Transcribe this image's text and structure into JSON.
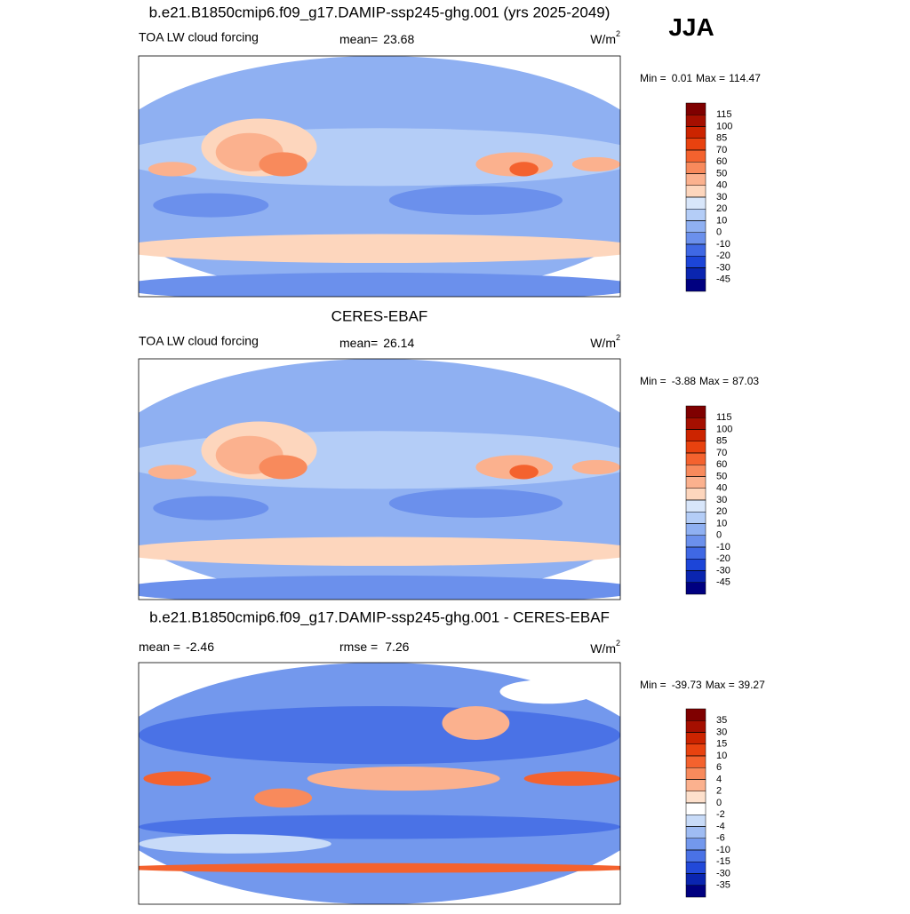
{
  "season": "JJA",
  "panels": [
    {
      "title": "b.e21.B1850cmip6.f09_g17.DAMIP-ssp245-ghg.001 (yrs 2025-2049)",
      "left_label": "TOA LW cloud forcing",
      "stat_label": "mean=",
      "stat_value": 23.68,
      "units": "W/m",
      "units_sup": "2",
      "min_label": "Min =",
      "min": 0.01,
      "max_label": "Max =",
      "max": 114.47,
      "levels": [
        115,
        100,
        85,
        70,
        60,
        50,
        40,
        30,
        20,
        10,
        0,
        -10,
        -20,
        -30,
        -45
      ],
      "colors": [
        "#7f0000",
        "#a50f00",
        "#cc2400",
        "#e8420f",
        "#f4622e",
        "#f88a5c",
        "#fbb18e",
        "#fdd6bd",
        "#d8e6fa",
        "#b4cdf7",
        "#8fb0f2",
        "#6b90ec",
        "#3f68e4",
        "#1c45d8",
        "#0a25b0",
        "#000080"
      ]
    },
    {
      "title": "CERES-EBAF",
      "left_label": "TOA LW cloud forcing",
      "stat_label": "mean=",
      "stat_value": 26.14,
      "units": "W/m",
      "units_sup": "2",
      "min_label": "Min =",
      "min": -3.88,
      "max_label": "Max =",
      "max": 87.03,
      "levels": [
        115,
        100,
        85,
        70,
        60,
        50,
        40,
        30,
        20,
        10,
        0,
        -10,
        -20,
        -30,
        -45
      ],
      "colors": [
        "#7f0000",
        "#a50f00",
        "#cc2400",
        "#e8420f",
        "#f4622e",
        "#f88a5c",
        "#fbb18e",
        "#fdd6bd",
        "#d8e6fa",
        "#b4cdf7",
        "#8fb0f2",
        "#6b90ec",
        "#3f68e4",
        "#1c45d8",
        "#0a25b0",
        "#000080"
      ]
    },
    {
      "title": "b.e21.B1850cmip6.f09_g17.DAMIP-ssp245-ghg.001 - CERES-EBAF",
      "stat_label": "mean =",
      "stat_value": -2.46,
      "stat2_label": "rmse =",
      "stat2_value": 7.26,
      "units": "W/m",
      "units_sup": "2",
      "min_label": "Min =",
      "min": -39.73,
      "max_label": "Max =",
      "max": 39.27,
      "levels": [
        35,
        30,
        15,
        10,
        6,
        4,
        2,
        0,
        -2,
        -4,
        -6,
        -10,
        -15,
        -30,
        -35
      ],
      "colors": [
        "#7f0000",
        "#a50f00",
        "#cc2400",
        "#e8420f",
        "#f4622e",
        "#f88a5c",
        "#fbb18e",
        "#fde0cc",
        "#ffffff",
        "#c8dbf8",
        "#9fbcf3",
        "#7398ed",
        "#4a72e6",
        "#2249d9",
        "#0a25b0",
        "#000080"
      ]
    }
  ]
}
